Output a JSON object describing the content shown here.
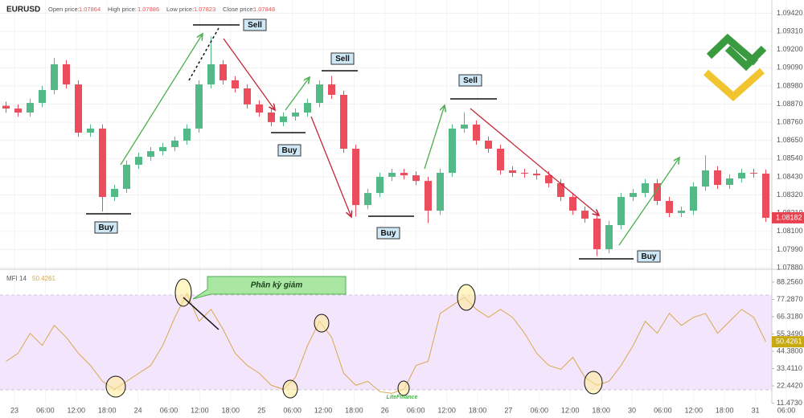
{
  "chart_data": {
    "type": "candlestick",
    "header": {
      "symbol": "EURUSD",
      "fields": [
        {
          "label": "Open price:",
          "value": 1.07864
        },
        {
          "label": "High price:",
          "value": 1.07886
        },
        {
          "label": "Low price:",
          "value": 1.07823
        },
        {
          "label": "Close price:",
          "value": 1.07848
        }
      ]
    },
    "open": [
      1.0886,
      1.08843,
      1.08819,
      1.08877,
      1.08955,
      1.09111,
      1.08989,
      1.08697,
      1.08722,
      1.08308,
      1.08357,
      1.08503,
      1.08551,
      1.08585,
      1.0861,
      1.08649,
      1.08722,
      1.08989,
      1.09111,
      1.09014,
      1.08965,
      1.08868,
      1.08819,
      1.08761,
      1.08795,
      1.08819,
      1.08877,
      1.08989,
      1.08926,
      1.086,
      1.08259,
      1.08332,
      1.0843,
      1.08454,
      1.08439,
      1.08405,
      1.08225,
      1.08454,
      1.08722,
      1.08746,
      1.08649,
      1.086,
      1.08469,
      1.08454,
      1.08449,
      1.08439,
      1.08391,
      1.08308,
      1.08225,
      1.08177,
      1.07992,
      1.08138,
      1.08308,
      1.08332,
      1.08391,
      1.08284,
      1.08211,
      1.08225,
      1.08371,
      1.08469,
      1.08381,
      1.0842,
      1.08454,
      1.08449
    ],
    "high": [
      1.08885,
      1.08868,
      1.08902,
      1.0898,
      1.0915,
      1.09136,
      1.09014,
      1.08747,
      1.08747,
      1.08382,
      1.08528,
      1.08576,
      1.0861,
      1.08635,
      1.08674,
      1.08747,
      1.09014,
      1.0928,
      1.09136,
      1.09039,
      1.0899,
      1.08893,
      1.08844,
      1.0882,
      1.08844,
      1.08902,
      1.09014,
      1.0904,
      1.08951,
      1.08625,
      1.08357,
      1.08455,
      1.08479,
      1.08479,
      1.08464,
      1.0843,
      1.08479,
      1.08747,
      1.0882,
      1.08771,
      1.08674,
      1.08625,
      1.08494,
      1.08479,
      1.08474,
      1.08464,
      1.08416,
      1.08333,
      1.0825,
      1.08202,
      1.08163,
      1.08333,
      1.08357,
      1.08416,
      1.08416,
      1.08309,
      1.0825,
      1.08396,
      1.0856,
      1.08494,
      1.08445,
      1.08479,
      1.08479,
      1.08474
    ],
    "low": [
      1.08818,
      1.08794,
      1.08794,
      1.08852,
      1.0893,
      1.08964,
      1.08672,
      1.08672,
      1.0822,
      1.08283,
      1.08332,
      1.08478,
      1.08526,
      1.0856,
      1.08585,
      1.08624,
      1.08697,
      1.08964,
      1.08989,
      1.0894,
      1.08843,
      1.08794,
      1.08736,
      1.08736,
      1.0877,
      1.08794,
      1.08852,
      1.08901,
      1.08575,
      1.0819,
      1.08234,
      1.08307,
      1.08405,
      1.08414,
      1.0838,
      1.0815,
      1.082,
      1.08429,
      1.08697,
      1.08624,
      1.08575,
      1.08444,
      1.08429,
      1.08424,
      1.08414,
      1.08366,
      1.08283,
      1.082,
      1.08152,
      1.0795,
      1.07967,
      1.08113,
      1.08283,
      1.08307,
      1.08259,
      1.08186,
      1.08186,
      1.082,
      1.08346,
      1.08356,
      1.08356,
      1.08395,
      1.08424,
      1.08157
    ],
    "close": [
      1.08843,
      1.08819,
      1.08877,
      1.08955,
      1.09111,
      1.08989,
      1.08697,
      1.08722,
      1.08308,
      1.08357,
      1.08503,
      1.08551,
      1.08585,
      1.0861,
      1.08649,
      1.08722,
      1.08989,
      1.09111,
      1.09014,
      1.08965,
      1.08868,
      1.08819,
      1.08761,
      1.08795,
      1.08819,
      1.08877,
      1.08989,
      1.08926,
      1.086,
      1.08259,
      1.08332,
      1.0843,
      1.08454,
      1.08439,
      1.08405,
      1.08225,
      1.08454,
      1.08722,
      1.08746,
      1.08649,
      1.086,
      1.08469,
      1.08454,
      1.08449,
      1.08439,
      1.08391,
      1.08308,
      1.08225,
      1.08177,
      1.07992,
      1.08138,
      1.08308,
      1.08332,
      1.08391,
      1.08284,
      1.08211,
      1.08225,
      1.08371,
      1.08469,
      1.08381,
      1.0842,
      1.08454,
      1.08449,
      1.08182
    ],
    "up_color": "#53b987",
    "down_color": "#eb4d5c",
    "last_price": 1.08182,
    "ylim": [
      1.0788,
      1.095
    ],
    "yticks": [
      {
        "value": 1.0942,
        "label": "1.09420"
      },
      {
        "value": 1.0931,
        "label": "1.09310"
      },
      {
        "value": 1.092,
        "label": "1.09200"
      },
      {
        "value": 1.0909,
        "label": "1.09090"
      },
      {
        "value": 1.0898,
        "label": "1.08980"
      },
      {
        "value": 1.0887,
        "label": "1.08870"
      },
      {
        "value": 1.0876,
        "label": "1.08760"
      },
      {
        "value": 1.0865,
        "label": "1.08650"
      },
      {
        "value": 1.0854,
        "label": "1.08540"
      },
      {
        "value": 1.0843,
        "label": "1.08430"
      },
      {
        "value": 1.0832,
        "label": "1.08320"
      },
      {
        "value": 1.0821,
        "label": "1.08210"
      },
      {
        "value": 1.081,
        "label": "1.08100"
      },
      {
        "value": 1.0799,
        "label": "1.07990"
      },
      {
        "value": 1.0788,
        "label": "1.07880"
      }
    ],
    "x_labels": [
      "23",
      "06:00",
      "12:00",
      "18:00",
      "24",
      "06:00",
      "12:00",
      "18:00",
      "25",
      "06:00",
      "12:00",
      "18:00",
      "26",
      "06:00",
      "12:00",
      "18:00",
      "27",
      "06:00",
      "12:00",
      "18:00",
      "30",
      "06:00",
      "12:00",
      "18:00",
      "31",
      "06:00"
    ],
    "grid": true,
    "indicator": {
      "name": "MFI 14",
      "color": "#d9a84e",
      "values": [
        37.99,
        43.06,
        55.76,
        48.1,
        60.8,
        53.2,
        43.1,
        35.4,
        25.3,
        20.2,
        25.3,
        30.4,
        35.4,
        48.1,
        65.9,
        81.1,
        63.4,
        71.0,
        58.3,
        43.1,
        35.4,
        30.4,
        22.8,
        20.2,
        27.8,
        48.1,
        63.4,
        53.2,
        30.4,
        22.8,
        25.3,
        18.7,
        17.7,
        20.2,
        35.4,
        38.0,
        68.4,
        73.5,
        78.6,
        71.0,
        65.9,
        71.0,
        65.9,
        55.8,
        43.1,
        35.4,
        32.9,
        40.5,
        27.8,
        22.8,
        25.3,
        35.4,
        48.1,
        63.4,
        55.8,
        68.4,
        60.8,
        65.9,
        68.4,
        55.8,
        63.4,
        71.0,
        65.9,
        50.4261
      ],
      "last": 50.4261,
      "levels": [
        80,
        20
      ],
      "ylim": [
        11.0,
        94.9
      ],
      "yticks": [
        {
          "value": 88.256,
          "label": "88.2560"
        },
        {
          "value": 77.287,
          "label": "77.2870"
        },
        {
          "value": 66.318,
          "label": "66.3180"
        },
        {
          "value": 55.349,
          "label": "55.3490"
        },
        {
          "value": 44.38,
          "label": "44.3800"
        },
        {
          "value": 33.411,
          "label": "33.4110"
        },
        {
          "value": 22.442,
          "label": "22.4420"
        },
        {
          "value": 11.473,
          "label": "11.4730"
        }
      ]
    },
    "annotations": [
      "Sell",
      "Sell",
      "Sell",
      "Buy",
      "Buy",
      "Buy",
      "Buy",
      "Phân kỳ giảm"
    ],
    "watermark": "LiteFinance"
  }
}
